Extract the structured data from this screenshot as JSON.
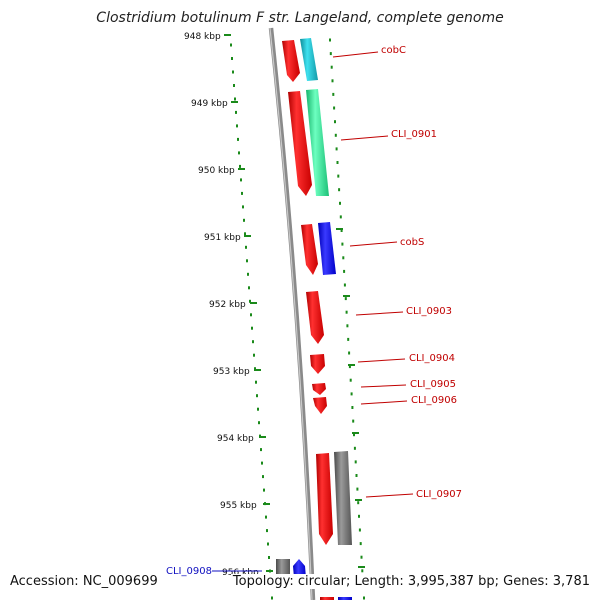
{
  "title": "Clostridium botulinum F str. Langeland, complete genome",
  "footer": {
    "accession": "Accession: NC_009699",
    "info": "Topology: circular; Length: 3,995,387 bp; Genes: 3,781"
  },
  "ticks": [
    "948 kbp",
    "949 kbp",
    "950 kbp",
    "951 kbp",
    "952 kbp",
    "953 kbp",
    "954 kbp",
    "955 kbp",
    "956 kbp"
  ],
  "genes": [
    {
      "label": "cobC",
      "color": "#c00000"
    },
    {
      "label": "CLI_0901",
      "color": "#c00000"
    },
    {
      "label": "cobS",
      "color": "#c00000"
    },
    {
      "label": "CLI_0903",
      "color": "#c00000"
    },
    {
      "label": "CLI_0904",
      "color": "#c00000"
    },
    {
      "label": "CLI_0905",
      "color": "#c00000"
    },
    {
      "label": "CLI_0906",
      "color": "#c00000"
    },
    {
      "label": "CLI_0907",
      "color": "#c00000"
    },
    {
      "label": "CLI_0908",
      "color": "#1010c0"
    }
  ],
  "colors": {
    "backbone": "#8a8a8a",
    "ruler": "#1a8a1a",
    "gene_red": "#ff1010",
    "gene_cyan": "#19c8d8",
    "gene_mint": "#2af09a",
    "gene_blue": "#1010ff",
    "gene_gray": "#6e6e6e"
  }
}
